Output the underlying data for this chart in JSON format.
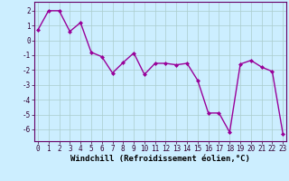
{
  "x": [
    0,
    1,
    2,
    3,
    4,
    5,
    6,
    7,
    8,
    9,
    10,
    11,
    12,
    13,
    14,
    15,
    16,
    17,
    18,
    19,
    20,
    21,
    22,
    23
  ],
  "y": [
    0.7,
    2.0,
    2.0,
    0.6,
    1.2,
    -0.8,
    -1.1,
    -2.2,
    -1.5,
    -0.85,
    -2.3,
    -1.55,
    -1.55,
    -1.65,
    -1.55,
    -2.7,
    -4.9,
    -4.9,
    -6.2,
    -1.6,
    -1.35,
    -1.8,
    -2.1,
    -6.3
  ],
  "line_color": "#990099",
  "marker": "D",
  "marker_size": 2.0,
  "bg_color": "#cceeff",
  "grid_color": "#aacccc",
  "xlabel": "Windchill (Refroidissement éolien,°C)",
  "ylim": [
    -6.8,
    2.6
  ],
  "xlim": [
    -0.3,
    23.3
  ],
  "yticks": [
    -6,
    -5,
    -4,
    -3,
    -2,
    -1,
    0,
    1,
    2
  ],
  "xticks": [
    0,
    1,
    2,
    3,
    4,
    5,
    6,
    7,
    8,
    9,
    10,
    11,
    12,
    13,
    14,
    15,
    16,
    17,
    18,
    19,
    20,
    21,
    22,
    23
  ],
  "tick_fontsize": 5.5,
  "xlabel_fontsize": 6.5,
  "line_width": 1.0
}
